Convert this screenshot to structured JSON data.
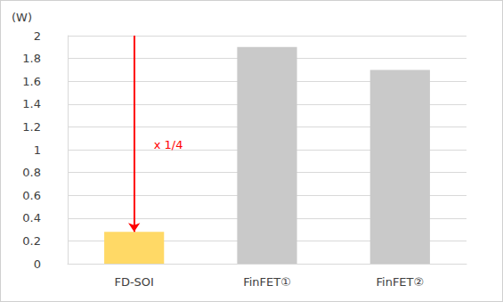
{
  "chart_data": {
    "type": "bar",
    "y_label": "(W)",
    "categories": [
      "FD-SOI",
      "FinFET①",
      "FinFET②"
    ],
    "values": [
      0.28,
      1.9,
      1.7
    ],
    "colors": [
      "#ffd966",
      "#c9c9c9",
      "#c9c9c9"
    ],
    "ylim": [
      0,
      2
    ],
    "yticks": [
      0,
      0.2,
      0.4,
      0.6,
      0.8,
      1,
      1.2,
      1.4,
      1.6,
      1.8,
      2
    ],
    "grid": true,
    "annotations": [
      {
        "text": "x 1/4",
        "category": "FD-SOI"
      }
    ]
  }
}
